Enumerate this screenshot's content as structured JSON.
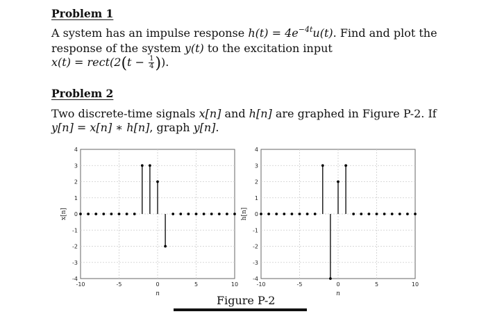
{
  "problem1": {
    "heading": "Problem 1",
    "line1_text": "A system has an impulse response ",
    "line1_h": "h(t) = 4e",
    "line1_exp": "−4t",
    "line1_u": "u(t)",
    "line1_tail": ". Find and plot the",
    "line2_text": "response of the system ",
    "line2_y": "y(t)",
    "line2_tail": " to the excitation input",
    "line3_x": "x(t) = rect(2",
    "line3_t": "t −",
    "line3_num": "1",
    "line3_den": "4",
    "line3_tail": ")."
  },
  "problem2": {
    "heading": "Problem 2",
    "line1_text": "Two discrete-time signals ",
    "line1_x": "x[n]",
    "line1_and": " and ",
    "line1_h": "h[n]",
    "line1_tail": " are graphed in Figure P-2.  If",
    "line2_eq": "y[n] = x[n] ∗ h[n]",
    "line2_mid": ", graph ",
    "line2_y": "y[n]",
    "line2_tail": "."
  },
  "figure_caption": "Figure P-2",
  "chart_data": [
    {
      "type": "stem",
      "ylabel": "x[n]",
      "xlabel": "n",
      "xlim": [
        -10,
        10
      ],
      "ylim": [
        -4,
        4
      ],
      "xticks": [
        -10,
        -5,
        0,
        5,
        10
      ],
      "yticks": [
        -4,
        -3,
        -2,
        -1,
        0,
        1,
        2,
        3,
        4
      ],
      "grid": true,
      "x": [
        -10,
        -9,
        -8,
        -7,
        -6,
        -5,
        -4,
        -3,
        -2,
        -1,
        0,
        1,
        2,
        3,
        4,
        5,
        6,
        7,
        8,
        9,
        10
      ],
      "values": [
        0,
        0,
        0,
        0,
        0,
        0,
        0,
        0,
        3,
        3,
        2,
        -2,
        0,
        0,
        0,
        0,
        0,
        0,
        0,
        0,
        0
      ]
    },
    {
      "type": "stem",
      "ylabel": "h[n]",
      "xlabel": "n",
      "xlim": [
        -10,
        10
      ],
      "ylim": [
        -4,
        4
      ],
      "xticks": [
        -10,
        -5,
        0,
        5,
        10
      ],
      "yticks": [
        -4,
        -3,
        -2,
        -1,
        0,
        1,
        2,
        3,
        4
      ],
      "grid": true,
      "x": [
        -10,
        -9,
        -8,
        -7,
        -6,
        -5,
        -4,
        -3,
        -2,
        -1,
        0,
        1,
        2,
        3,
        4,
        5,
        6,
        7,
        8,
        9,
        10
      ],
      "values": [
        0,
        0,
        0,
        0,
        0,
        0,
        0,
        0,
        3,
        -4,
        2,
        3,
        0,
        0,
        0,
        0,
        0,
        0,
        0,
        0,
        0
      ]
    }
  ]
}
